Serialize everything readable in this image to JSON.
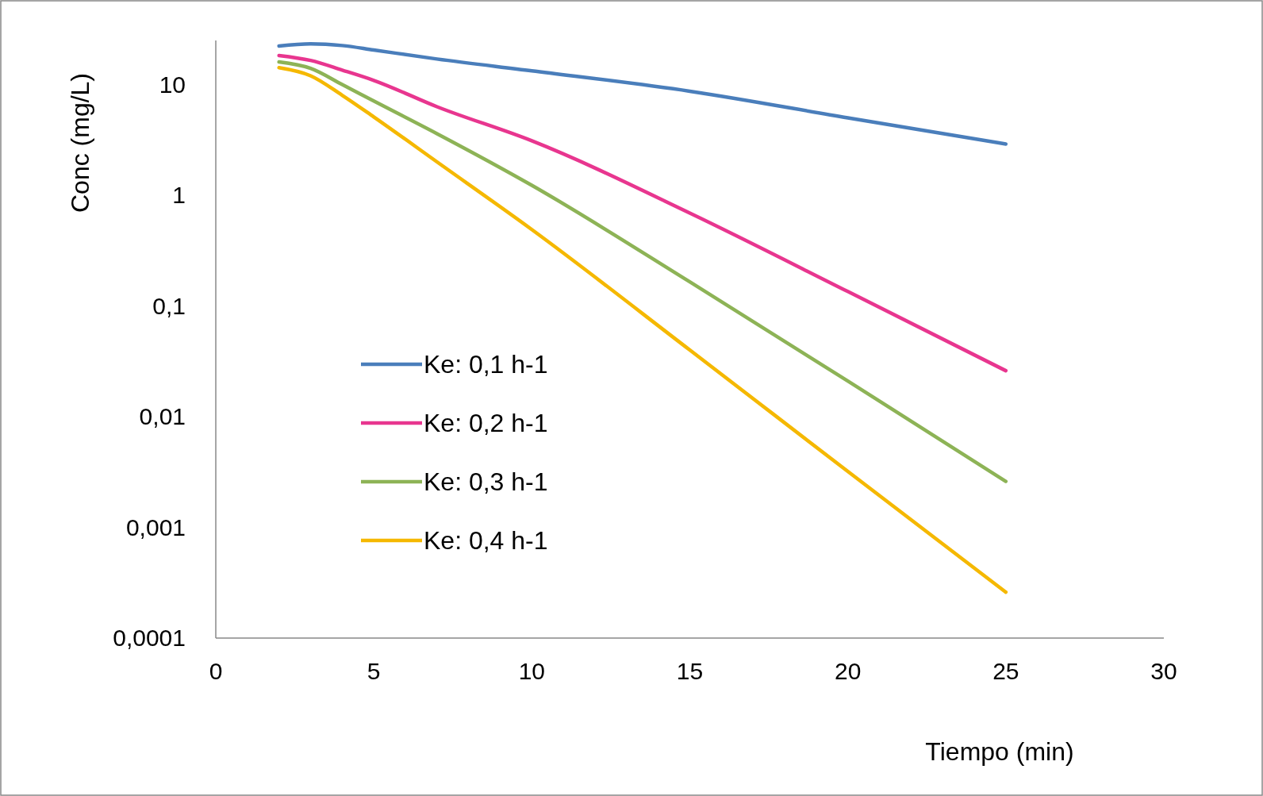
{
  "chart_data": {
    "type": "line",
    "xlabel": "Tiempo (min)",
    "ylabel": "Conc (mg/L)",
    "log": "y",
    "grid": false,
    "legend": "left",
    "marker": "none",
    "line_style": "solid",
    "xlim": [
      0,
      30
    ],
    "xticks": [
      0,
      5,
      10,
      15,
      20,
      25,
      30
    ],
    "ylim": [
      0.0001,
      25
    ],
    "yticks": [
      {
        "value": 0.0001,
        "label": "0,0001"
      },
      {
        "value": 0.001,
        "label": "0,001"
      },
      {
        "value": 0.01,
        "label": "0,01"
      },
      {
        "value": 0.1,
        "label": "0,1"
      },
      1,
      10
    ],
    "x": [
      2,
      3,
      4,
      5,
      7,
      10,
      15,
      20,
      25
    ],
    "series": [
      {
        "name": "Ke: 0,1 h-1",
        "color": "#4a7ebb",
        "values": [
          22.3,
          23.3,
          22.5,
          20.5,
          17,
          13.3,
          8.7,
          5.0,
          2.9
        ]
      },
      {
        "name": "Ke: 0,2 h-1",
        "color": "#e8368f",
        "values": [
          18.3,
          16.5,
          13.5,
          10.9,
          6.3,
          3.1,
          0.69,
          0.135,
          0.026
        ]
      },
      {
        "name": "Ke: 0,3 h-1",
        "color": "#8db356",
        "values": [
          16,
          14,
          10,
          7.1,
          3.6,
          1.23,
          0.165,
          0.021,
          0.0026
        ]
      },
      {
        "name": "Ke: 0,4 h-1",
        "color": "#f5b800",
        "values": [
          14.2,
          12,
          8,
          5.1,
          2.0,
          0.49,
          0.04,
          0.0032,
          0.00026
        ]
      }
    ]
  }
}
